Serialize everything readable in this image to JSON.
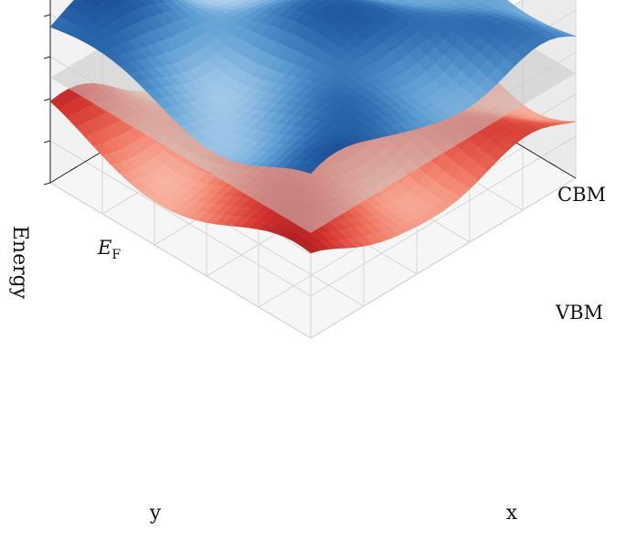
{
  "chart_data": {
    "type": "surface3d",
    "title": "",
    "xlabel": "x",
    "ylabel": "y",
    "zlabel": "Energy",
    "x_range": [
      0,
      10
    ],
    "y_range": [
      0,
      10
    ],
    "z_range": [
      -2.5,
      2.5
    ],
    "grid": true,
    "tick_labels_visible": false,
    "surfaces": [
      {
        "name": "CBM",
        "base_level": 1.0,
        "colormap": "Blues",
        "label_color": "#3a78b5",
        "amplitude": 0.35
      },
      {
        "name": "E_F",
        "label_main": "E",
        "label_sub": "F",
        "level": 0.0,
        "color": "#c8c8c8",
        "type": "plane"
      },
      {
        "name": "VBM",
        "base_level": -1.0,
        "colormap": "Reds",
        "label_color": "#d43a3a",
        "amplitude": 0.35
      }
    ]
  }
}
